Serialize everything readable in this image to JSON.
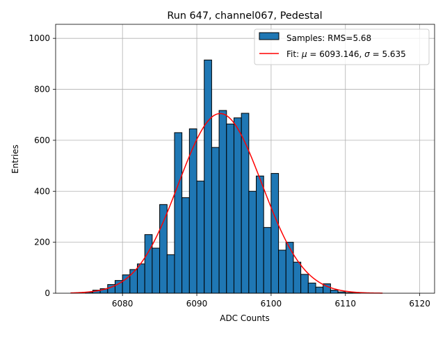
{
  "chart_data": {
    "type": "bar",
    "title": "Run 647, channel067, Pedestal",
    "xlabel": "ADC Counts",
    "ylabel": "Entries",
    "xlim": [
      6071,
      6122
    ],
    "ylim": [
      0,
      1055
    ],
    "xticks": [
      6080,
      6090,
      6100,
      6110,
      6120
    ],
    "yticks": [
      0,
      200,
      400,
      600,
      800,
      1000
    ],
    "grid": true,
    "legend_position": "top-right",
    "bin_width": 1,
    "bin_edges_start": 6075,
    "bins": [
      {
        "x": 6075,
        "y": 4
      },
      {
        "x": 6076,
        "y": 12
      },
      {
        "x": 6077,
        "y": 18
      },
      {
        "x": 6078,
        "y": 34
      },
      {
        "x": 6079,
        "y": 50
      },
      {
        "x": 6080,
        "y": 72
      },
      {
        "x": 6081,
        "y": 93
      },
      {
        "x": 6082,
        "y": 115
      },
      {
        "x": 6083,
        "y": 230
      },
      {
        "x": 6084,
        "y": 177
      },
      {
        "x": 6085,
        "y": 348
      },
      {
        "x": 6086,
        "y": 151
      },
      {
        "x": 6087,
        "y": 630
      },
      {
        "x": 6088,
        "y": 375
      },
      {
        "x": 6089,
        "y": 645
      },
      {
        "x": 6090,
        "y": 440
      },
      {
        "x": 6091,
        "y": 915
      },
      {
        "x": 6092,
        "y": 572
      },
      {
        "x": 6093,
        "y": 717
      },
      {
        "x": 6094,
        "y": 664
      },
      {
        "x": 6095,
        "y": 688
      },
      {
        "x": 6096,
        "y": 706
      },
      {
        "x": 6097,
        "y": 400
      },
      {
        "x": 6098,
        "y": 460
      },
      {
        "x": 6099,
        "y": 258
      },
      {
        "x": 6100,
        "y": 470
      },
      {
        "x": 6101,
        "y": 169
      },
      {
        "x": 6102,
        "y": 200
      },
      {
        "x": 6103,
        "y": 122
      },
      {
        "x": 6104,
        "y": 74
      },
      {
        "x": 6105,
        "y": 40
      },
      {
        "x": 6106,
        "y": 24
      },
      {
        "x": 6107,
        "y": 37
      },
      {
        "x": 6108,
        "y": 12
      },
      {
        "x": 6109,
        "y": 5
      },
      {
        "x": 6110,
        "y": 2
      },
      {
        "x": 6111,
        "y": 1
      }
    ],
    "fit": {
      "type": "gaussian",
      "mu": 6093.146,
      "sigma": 5.635,
      "amplitude": 705,
      "x_range": [
        6073,
        6115
      ]
    },
    "series": [
      {
        "name": "Samples: RMS=5.68",
        "kind": "histogram",
        "color": "#1f77b4",
        "edge_color": "#000000"
      },
      {
        "name": "Fit: μ = 6093.146, σ = 5.635",
        "kind": "line",
        "color": "#ff0000"
      }
    ],
    "legend": {
      "histogram_label": "Samples: RMS=5.68",
      "fit_label_prefix": "Fit: ",
      "fit_mu_symbol": "μ",
      "fit_mu_text": " = 6093.146, ",
      "fit_sigma_symbol": "σ",
      "fit_sigma_text": " = 5.635"
    },
    "colors": {
      "grid": "#b0b0b0",
      "axes": "#000000",
      "legend_edge": "#cccccc"
    }
  }
}
